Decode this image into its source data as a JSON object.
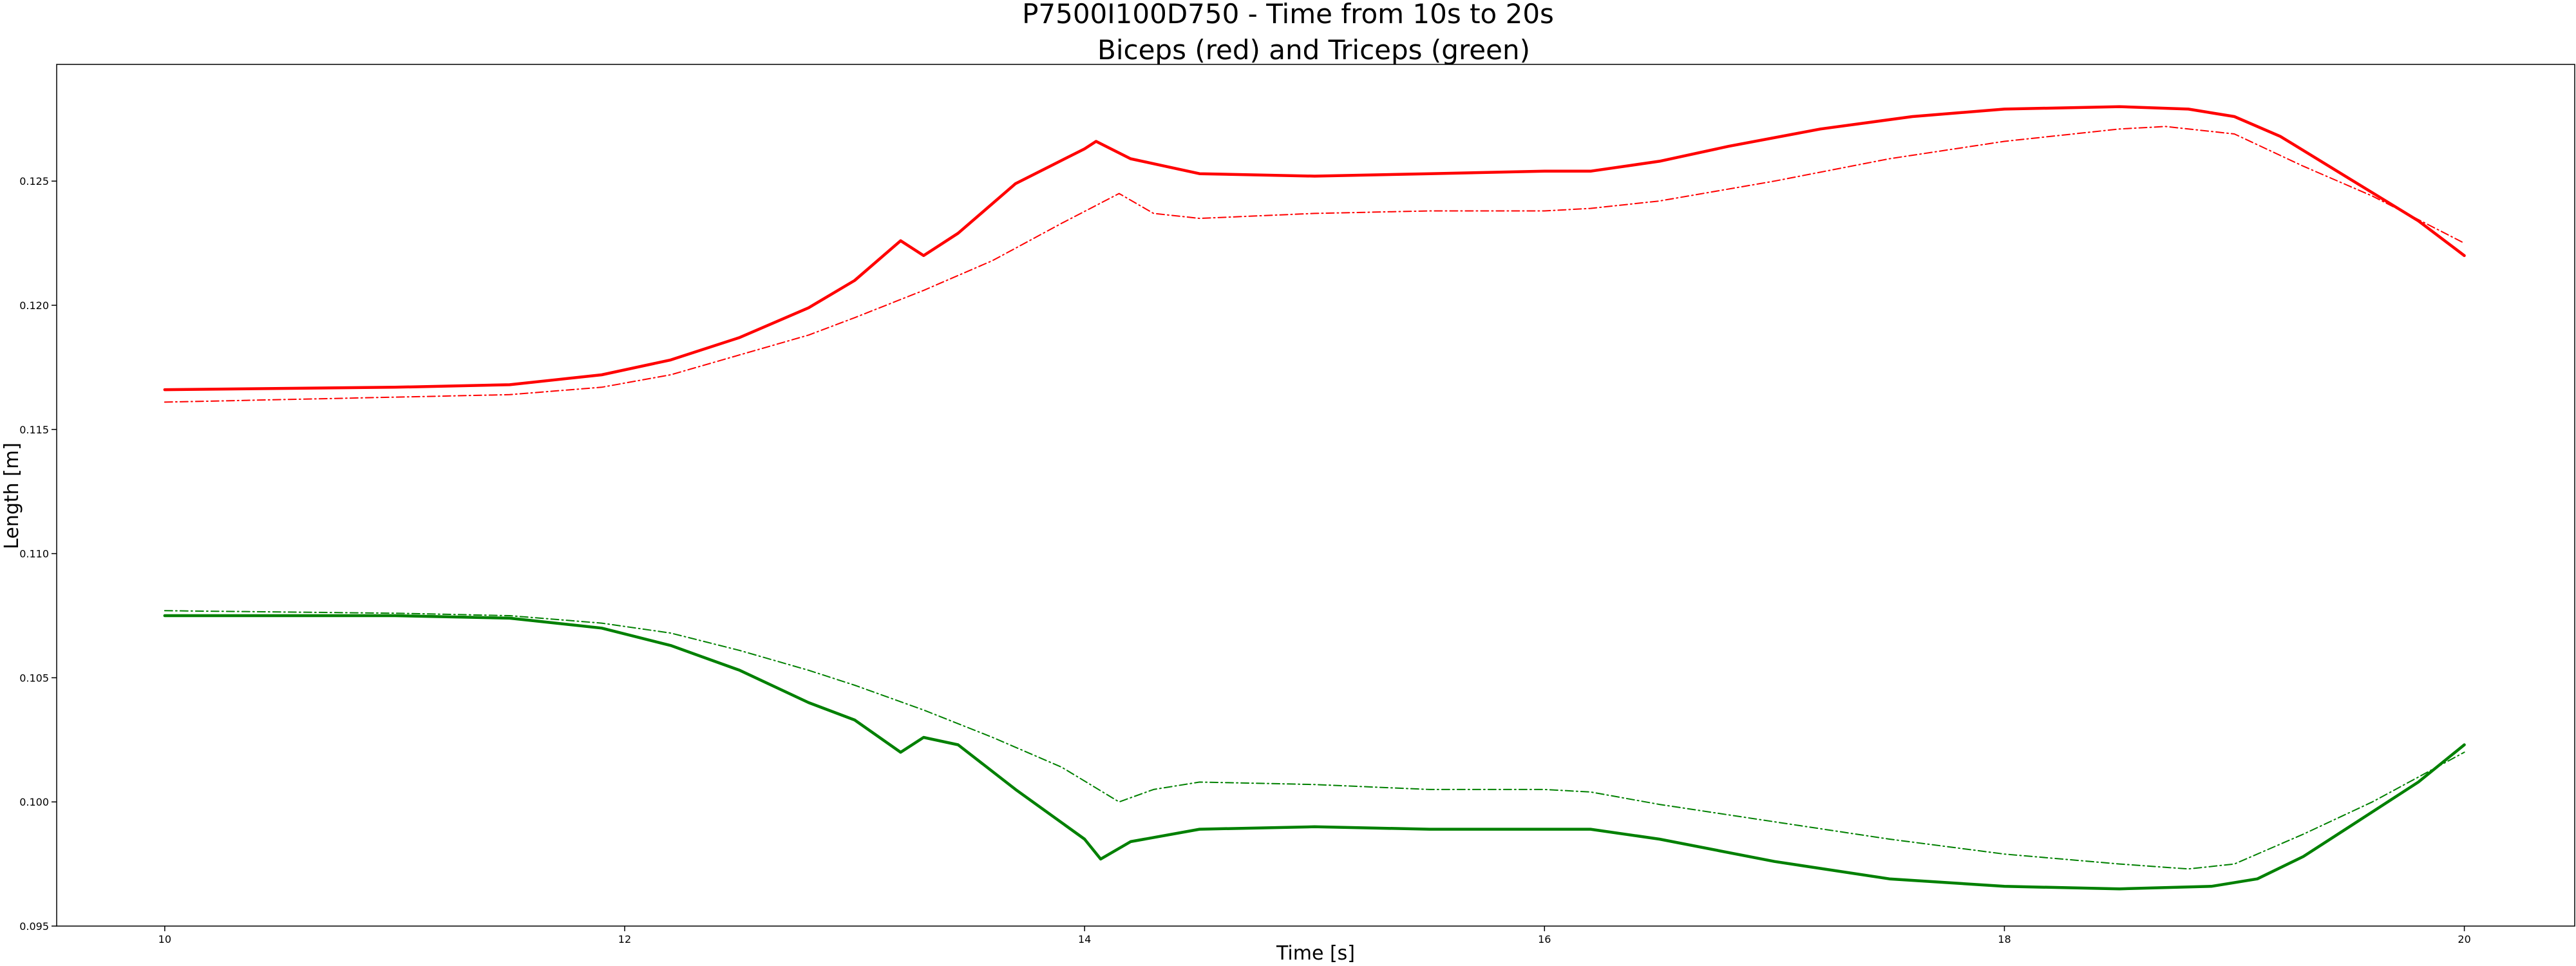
{
  "chart_data": {
    "type": "line",
    "title": "P7500I100D750 - Time from 10s to 20s",
    "subtitle": "Biceps (red) and Triceps (green)",
    "xlabel": "Time [s]",
    "ylabel": "Length [m]",
    "xlim": [
      9.53,
      20.48
    ],
    "ylim": [
      0.095,
      0.1297
    ],
    "xticks": [
      10,
      12,
      14,
      16,
      18,
      20
    ],
    "yticks": [
      0.095,
      0.1,
      0.105,
      0.11,
      0.115,
      0.12,
      0.125
    ],
    "ytick_labels": [
      "0.095",
      "0.100",
      "0.105",
      "0.110",
      "0.115",
      "0.120",
      "0.125"
    ],
    "grid": false,
    "series": [
      {
        "color": "#ff0000",
        "style": "solid",
        "x": [
          10.0,
          11.0,
          11.5,
          11.7,
          11.9,
          12.2,
          12.5,
          12.8,
          13.0,
          13.2,
          13.3,
          13.45,
          13.7,
          14.0,
          14.05,
          14.2,
          14.5,
          15.0,
          15.5,
          16.0,
          16.2,
          16.5,
          16.8,
          17.2,
          17.6,
          18.0,
          18.5,
          18.8,
          19.0,
          19.2,
          19.5,
          19.8,
          20.0
        ],
        "y": [
          0.1166,
          0.1167,
          0.1168,
          0.117,
          0.1172,
          0.1178,
          0.1187,
          0.1199,
          0.121,
          0.1226,
          0.122,
          0.1229,
          0.1249,
          0.1263,
          0.1266,
          0.1259,
          0.1253,
          0.1252,
          0.1253,
          0.1254,
          0.1254,
          0.1258,
          0.1264,
          0.1271,
          0.1276,
          0.1279,
          0.128,
          0.1279,
          0.1276,
          0.1268,
          0.1251,
          0.1234,
          0.122
        ]
      },
      {
        "color": "#ff0000",
        "style": "dashdot",
        "x": [
          10.0,
          11.0,
          11.5,
          11.9,
          12.2,
          12.5,
          12.8,
          13.0,
          13.3,
          13.6,
          13.9,
          14.15,
          14.3,
          14.5,
          15.0,
          15.5,
          16.0,
          16.2,
          16.5,
          17.0,
          17.5,
          18.0,
          18.5,
          18.7,
          19.0,
          19.3,
          19.6,
          20.0
        ],
        "y": [
          0.1161,
          0.1163,
          0.1164,
          0.1167,
          0.1172,
          0.118,
          0.1188,
          0.1195,
          0.1206,
          0.1218,
          0.1233,
          0.1245,
          0.1237,
          0.1235,
          0.1237,
          0.1238,
          0.1238,
          0.1239,
          0.1242,
          0.125,
          0.1259,
          0.1266,
          0.1271,
          0.1272,
          0.1269,
          0.1256,
          0.1244,
          0.1225
        ]
      },
      {
        "color": "#008000",
        "style": "solid",
        "x": [
          10.0,
          11.0,
          11.5,
          11.9,
          12.2,
          12.5,
          12.8,
          13.0,
          13.2,
          13.3,
          13.45,
          13.7,
          14.0,
          14.07,
          14.2,
          14.5,
          15.0,
          15.5,
          16.0,
          16.2,
          16.5,
          17.0,
          17.5,
          18.0,
          18.5,
          18.9,
          19.1,
          19.3,
          19.5,
          19.8,
          20.0
        ],
        "y": [
          0.1075,
          0.1075,
          0.1074,
          0.107,
          0.1063,
          0.1053,
          0.104,
          0.1033,
          0.102,
          0.1026,
          0.1023,
          0.1005,
          0.0985,
          0.0977,
          0.0984,
          0.0989,
          0.099,
          0.0989,
          0.0989,
          0.0989,
          0.0985,
          0.0976,
          0.0969,
          0.0966,
          0.0965,
          0.0966,
          0.0969,
          0.0978,
          0.099,
          0.1008,
          0.1023
        ]
      },
      {
        "color": "#008000",
        "style": "dashdot",
        "x": [
          10.0,
          11.0,
          11.5,
          11.9,
          12.2,
          12.5,
          12.8,
          13.0,
          13.3,
          13.6,
          13.9,
          14.15,
          14.3,
          14.5,
          15.0,
          15.5,
          16.0,
          16.2,
          16.5,
          17.0,
          17.5,
          18.0,
          18.5,
          18.8,
          19.0,
          19.3,
          19.6,
          20.0
        ],
        "y": [
          0.1077,
          0.1076,
          0.1075,
          0.1072,
          0.1068,
          0.1061,
          0.1053,
          0.1047,
          0.1037,
          0.1026,
          0.1014,
          0.1,
          0.1005,
          0.1008,
          0.1007,
          0.1005,
          0.1005,
          0.1004,
          0.0999,
          0.0992,
          0.0985,
          0.0979,
          0.0975,
          0.0973,
          0.0975,
          0.0987,
          0.1,
          0.102
        ]
      }
    ]
  }
}
